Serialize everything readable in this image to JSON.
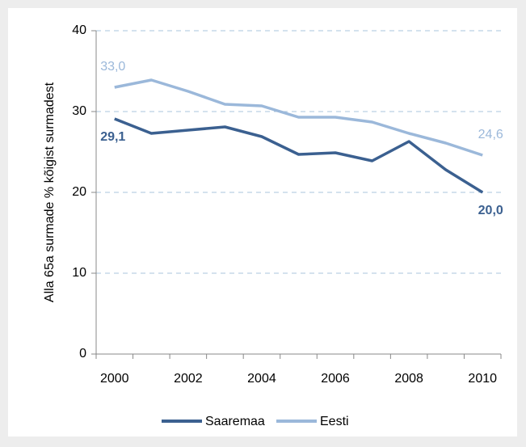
{
  "chart_data": {
    "type": "line",
    "y_label": "Alla 65a surmade % kõigist surmadest",
    "categories": [
      2000,
      null,
      2002,
      null,
      2004,
      null,
      2006,
      null,
      2008,
      null,
      2010
    ],
    "series": [
      {
        "name": "Saaremaa",
        "color": "#3b6090",
        "values": [
          29.1,
          27.3,
          27.7,
          28.1,
          26.9,
          24.7,
          24.9,
          23.9,
          26.3,
          22.8,
          20.0
        ],
        "value_labels": [
          "29,1",
          null,
          null,
          null,
          null,
          null,
          null,
          null,
          null,
          null,
          "20,0"
        ]
      },
      {
        "name": "Eesti",
        "color": "#9bb8da",
        "values": [
          33.0,
          33.9,
          32.5,
          30.9,
          30.7,
          29.3,
          29.3,
          28.7,
          27.3,
          26.1,
          24.6
        ],
        "value_labels": [
          "33,0",
          null,
          null,
          null,
          null,
          null,
          null,
          null,
          null,
          null,
          "24,6"
        ]
      }
    ],
    "ylim": [
      0,
      40
    ],
    "yticks": [
      0,
      10,
      20,
      30,
      40
    ],
    "grid": true,
    "legend": "bottom"
  }
}
